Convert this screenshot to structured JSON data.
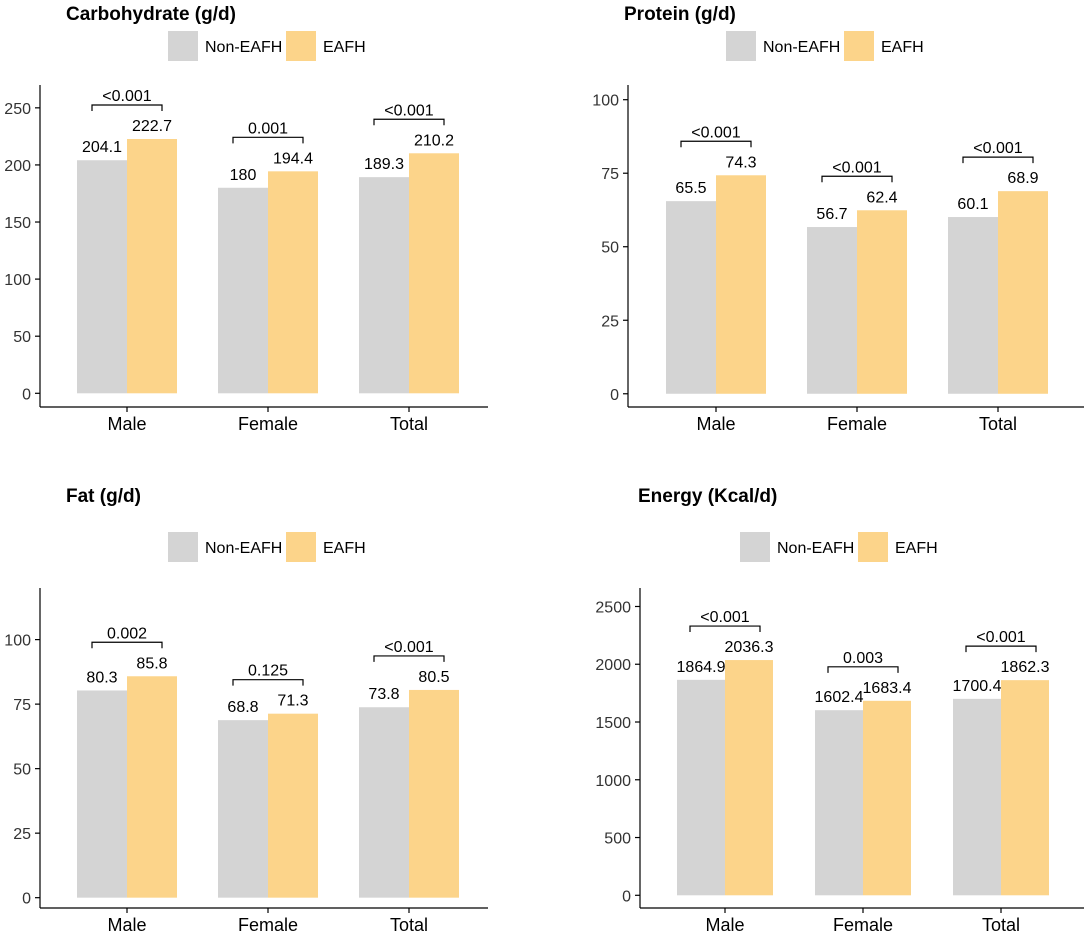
{
  "colors": {
    "non_eafh": "#d4d4d4",
    "eafh": "#fcd48a",
    "axis": "#000000",
    "text": "#000000"
  },
  "chart_data": [
    {
      "type": "bar",
      "title": "Carbohydrate (g/d)",
      "legend": [
        "Non-EAFH",
        "EAFH"
      ],
      "categories": [
        "Male",
        "Female",
        "Total"
      ],
      "series": [
        {
          "name": "Non-EAFH",
          "values": [
            204.1,
            180,
            189.3
          ],
          "labels": [
            "204.1",
            "180",
            "189.3"
          ]
        },
        {
          "name": "EAFH",
          "values": [
            222.7,
            194.4,
            210.2
          ],
          "labels": [
            "222.7",
            "194.4",
            "210.2"
          ]
        }
      ],
      "pvalues": [
        "<0.001",
        "0.001",
        "<0.001"
      ],
      "yticks": [
        0,
        50,
        100,
        150,
        200,
        250
      ],
      "ylim": [
        -12,
        270
      ]
    },
    {
      "type": "bar",
      "title": "Protein (g/d)",
      "legend": [
        "Non-EAFH",
        "EAFH"
      ],
      "categories": [
        "Male",
        "Female",
        "Total"
      ],
      "series": [
        {
          "name": "Non-EAFH",
          "values": [
            65.5,
            56.7,
            60.1
          ],
          "labels": [
            "65.5",
            "56.7",
            "60.1"
          ]
        },
        {
          "name": "EAFH",
          "values": [
            74.3,
            62.4,
            68.9
          ],
          "labels": [
            "74.3",
            "62.4",
            "68.9"
          ]
        }
      ],
      "pvalues": [
        "<0.001",
        "<0.001",
        "<0.001"
      ],
      "yticks": [
        0,
        25,
        50,
        75,
        100
      ],
      "ylim": [
        -4.5,
        105
      ]
    },
    {
      "type": "bar",
      "title": "Fat (g/d)",
      "legend": [
        "Non-EAFH",
        "EAFH"
      ],
      "categories": [
        "Male",
        "Female",
        "Total"
      ],
      "series": [
        {
          "name": "Non-EAFH",
          "values": [
            80.3,
            68.8,
            73.8
          ],
          "labels": [
            "80.3",
            "68.8",
            "73.8"
          ]
        },
        {
          "name": "EAFH",
          "values": [
            85.8,
            71.3,
            80.5
          ],
          "labels": [
            "85.8",
            "71.3",
            "80.5"
          ]
        }
      ],
      "pvalues": [
        "0.002",
        "0.125",
        "<0.001"
      ],
      "yticks": [
        0,
        25,
        50,
        75,
        100
      ],
      "ylim": [
        -4,
        120
      ]
    },
    {
      "type": "bar",
      "title": "Energy (Kcal/d)",
      "legend": [
        "Non-EAFH",
        "EAFH"
      ],
      "categories": [
        "Male",
        "Female",
        "Total"
      ],
      "series": [
        {
          "name": "Non-EAFH",
          "values": [
            1864.9,
            1602.4,
            1700.4
          ],
          "labels": [
            "1864.9",
            "1602.4",
            "1700.4"
          ]
        },
        {
          "name": "EAFH",
          "values": [
            2036.3,
            1683.4,
            1862.3
          ],
          "labels": [
            "2036.3",
            "1683.4",
            "1862.3"
          ]
        }
      ],
      "pvalues": [
        "<0.001",
        "0.003",
        "<0.001"
      ],
      "yticks": [
        0,
        500,
        1000,
        1500,
        2000,
        2500
      ],
      "ylim": [
        -110,
        2660
      ]
    }
  ]
}
